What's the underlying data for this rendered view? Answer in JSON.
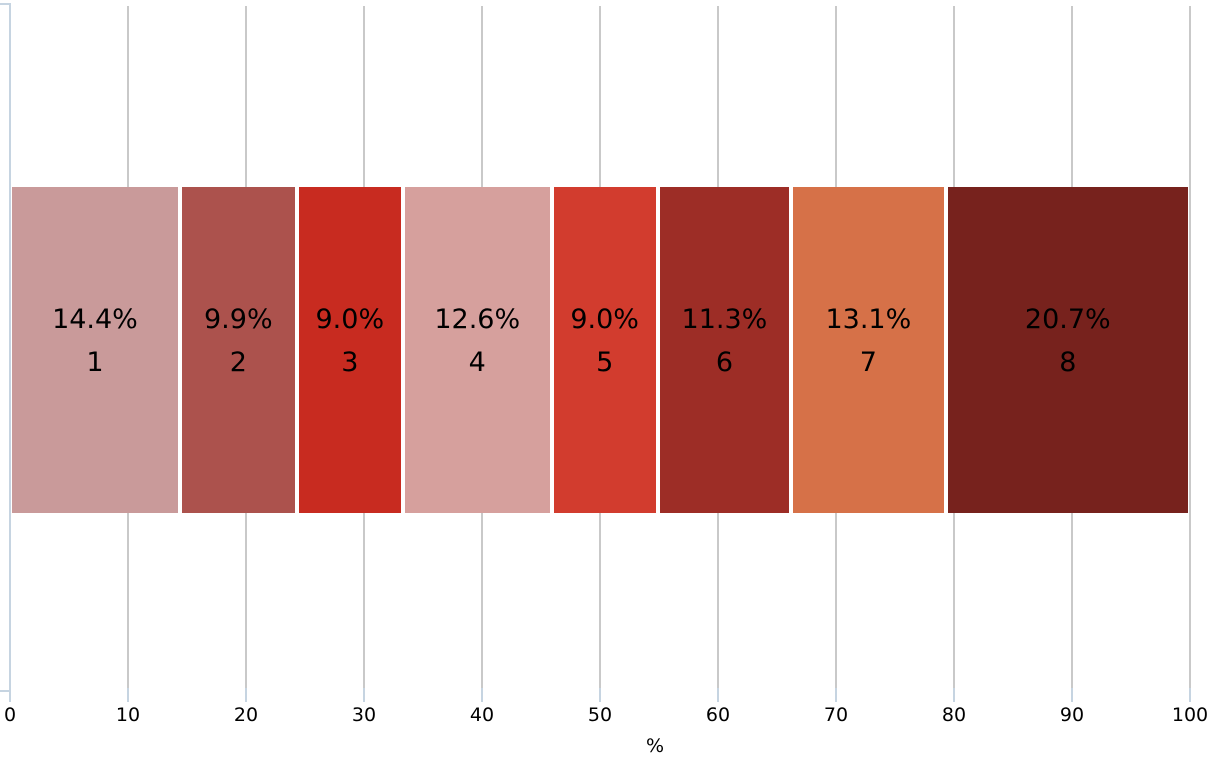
{
  "chart_data": {
    "type": "bar",
    "subtype": "horizontal-stacked-100pct",
    "title": "",
    "xlabel": "%",
    "ylabel": "",
    "xlim": [
      0,
      100
    ],
    "x_ticks": [
      0,
      10,
      20,
      30,
      40,
      50,
      60,
      70,
      80,
      90,
      100
    ],
    "grid": true,
    "segments": [
      {
        "label": "1",
        "value": 14.4,
        "pct_text": "14.4%",
        "color": "#c99a9a"
      },
      {
        "label": "2",
        "value": 9.9,
        "pct_text": "9.9%",
        "color": "#ac524d"
      },
      {
        "label": "3",
        "value": 9.0,
        "pct_text": "9.0%",
        "color": "#c82b20"
      },
      {
        "label": "4",
        "value": 12.6,
        "pct_text": "12.6%",
        "color": "#d6a09d"
      },
      {
        "label": "5",
        "value": 9.0,
        "pct_text": "9.0%",
        "color": "#d23c2e"
      },
      {
        "label": "6",
        "value": 11.3,
        "pct_text": "11.3%",
        "color": "#9d2d26"
      },
      {
        "label": "7",
        "value": 13.1,
        "pct_text": "13.1%",
        "color": "#d67148"
      },
      {
        "label": "8",
        "value": 20.7,
        "pct_text": "20.7%",
        "color": "#77221d"
      }
    ],
    "colors": {
      "gridline": "#c9c9c9",
      "axis": "#c6d4e1",
      "label_text": "#000000",
      "background": "#ffffff"
    }
  }
}
